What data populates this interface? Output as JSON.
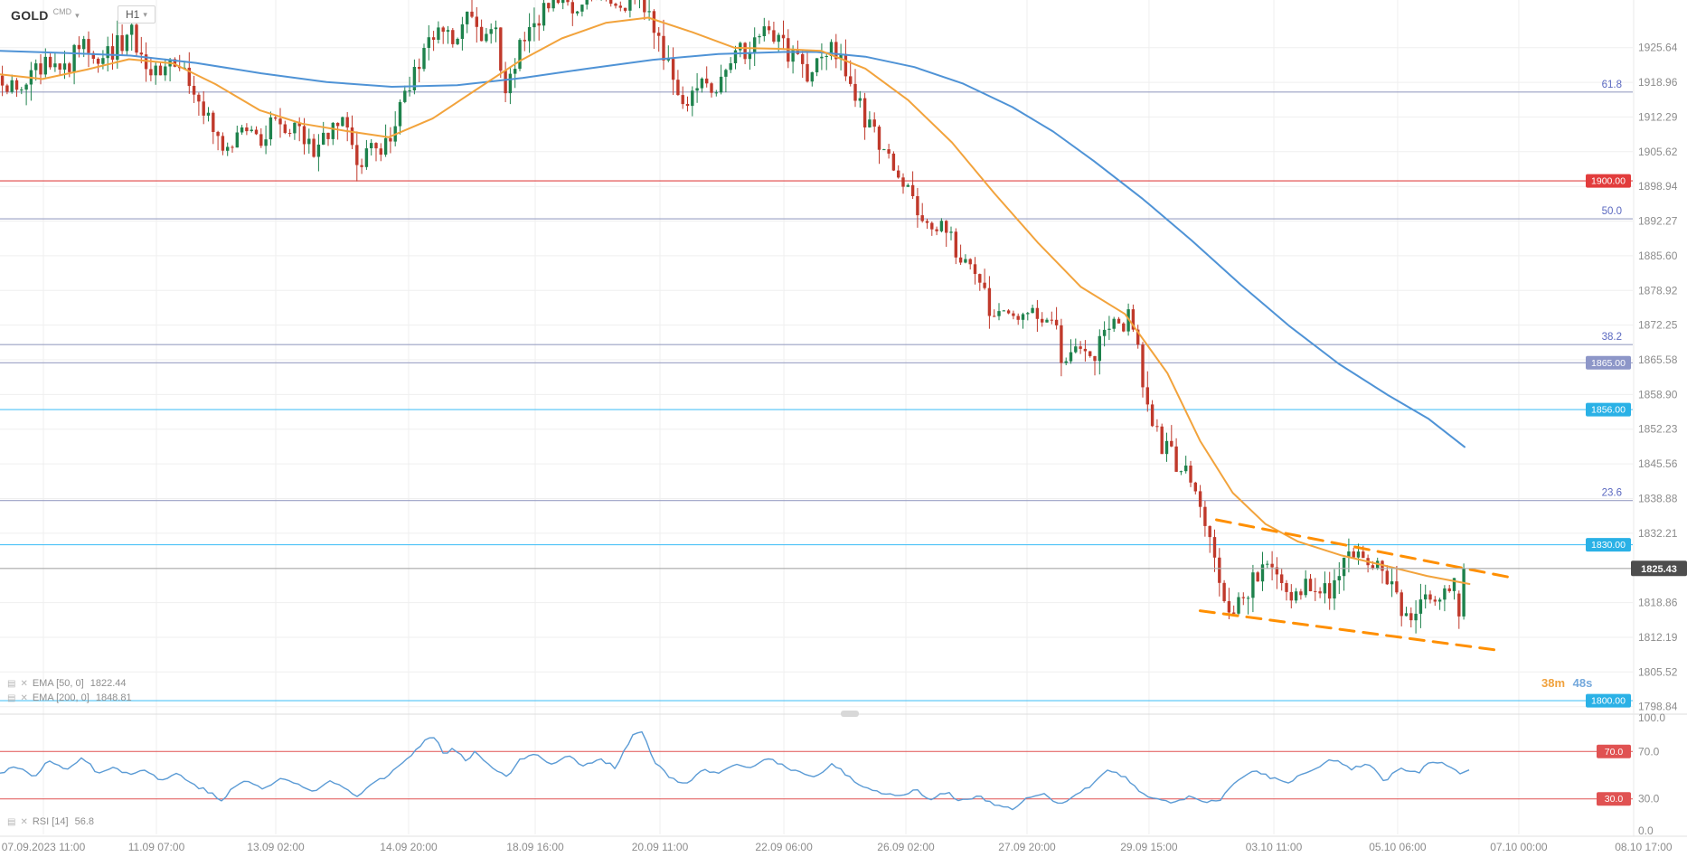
{
  "toolbar": {
    "symbol": "GOLD",
    "symbol_suffix": "CMD",
    "timeframe": "H1"
  },
  "indicators": {
    "ema50_label": "EMA [50, 0]",
    "ema50_value": "1822.44",
    "ema200_label": "EMA [200, 0]",
    "ema200_value": "1848.81",
    "rsi_label": "RSI [14]",
    "rsi_value": "56.8"
  },
  "timer": {
    "minutes": "38m",
    "seconds": "48s"
  },
  "colors": {
    "bull": "#1e824c",
    "bear": "#c0392b",
    "grid": "#efefef",
    "axis_text": "#8c8c8c",
    "current_line": "#a8a8a8",
    "current_badge": "#4d4d4d",
    "rsi_line": "#5b9bd5",
    "rsi_level": "#e05252"
  },
  "chart_data": {
    "type": "candlestick",
    "symbol": "GOLD",
    "timeframe": "H1",
    "current_price": 1825.43,
    "candle_spacing": 5.3,
    "candle_width": 3.4,
    "data_extent": 0.9007,
    "main_pane": {
      "price_top": 1934.8,
      "price_bottom": 1797.4
    },
    "price_axis_ticks": [
      1925.64,
      1918.96,
      1912.29,
      1905.62,
      1898.94,
      1892.27,
      1885.6,
      1878.92,
      1872.25,
      1865.58,
      1858.9,
      1852.23,
      1845.56,
      1838.88,
      1832.21,
      1818.86,
      1812.19,
      1805.52,
      1798.84
    ],
    "time_axis_ticks": [
      {
        "label": "07.09.2023 11:00",
        "x": 0.0266
      },
      {
        "label": "11.09 07:00",
        "x": 0.0958
      },
      {
        "label": "13.09 02:00",
        "x": 0.1689
      },
      {
        "label": "14.09 20:00",
        "x": 0.2503
      },
      {
        "label": "18.09 16:00",
        "x": 0.3278
      },
      {
        "label": "20.09 11:00",
        "x": 0.4042
      },
      {
        "label": "22.09 06:00",
        "x": 0.4801
      },
      {
        "label": "26.09 02:00",
        "x": 0.5548
      },
      {
        "label": "27.09 20:00",
        "x": 0.629
      },
      {
        "label": "29.09 15:00",
        "x": 0.7037
      },
      {
        "label": "03.10 11:00",
        "x": 0.7802
      },
      {
        "label": "05.10 06:00",
        "x": 0.856
      },
      {
        "label": "07.10 00:00",
        "x": 0.9302
      },
      {
        "label": "08.10 17:00",
        "x": 1.0066
      }
    ],
    "levels": [
      {
        "price": 1917.1,
        "label": "61.8",
        "style": "fib",
        "line_color": "#9aa0c4",
        "text_color": "#5a68c0"
      },
      {
        "price": 1900.0,
        "label": "1900.00",
        "style": "price",
        "line_color": "#e04646",
        "badge_color": "#e23c3c"
      },
      {
        "price": 1892.7,
        "label": "50.0",
        "style": "fib",
        "line_color": "#9aa0c4",
        "text_color": "#5a68c0"
      },
      {
        "price": 1868.5,
        "label": "38.2",
        "style": "fib",
        "line_color": "#9aa0c4",
        "text_color": "#5a68c0"
      },
      {
        "price": 1865.0,
        "label": "1865.00",
        "style": "price",
        "line_color": "#9aa0c4",
        "badge_color": "#8d96c8"
      },
      {
        "price": 1856.0,
        "label": "1856.00",
        "style": "price",
        "line_color": "#4fc3f7",
        "badge_color": "#2ab1e6"
      },
      {
        "price": 1838.5,
        "label": "23.6",
        "style": "fib",
        "line_color": "#9aa0c4",
        "text_color": "#5a68c0"
      },
      {
        "price": 1830.0,
        "label": "1830.00",
        "style": "price",
        "line_color": "#4fc3f7",
        "badge_color": "#2ab1e6"
      },
      {
        "price": 1800.0,
        "label": "1800.00",
        "style": "price",
        "line_color": "#4fc3f7",
        "badge_color": "#2ab1e6"
      }
    ],
    "trend_channel": {
      "color": "#ff8f00",
      "upper": [
        [
          0.745,
          1834.8
        ],
        [
          0.927,
          1823.6
        ]
      ],
      "lower": [
        [
          0.735,
          1817.3
        ],
        [
          0.92,
          1809.6
        ]
      ]
    },
    "ema50": {
      "period": 50,
      "value": 1822.44,
      "color": "#f2a33c",
      "path": [
        [
          0,
          1920.5
        ],
        [
          0.026,
          1919.6
        ],
        [
          0.053,
          1921.4
        ],
        [
          0.079,
          1923.4
        ],
        [
          0.106,
          1922.6
        ],
        [
          0.132,
          1918.6
        ],
        [
          0.159,
          1913.6
        ],
        [
          0.185,
          1911.0
        ],
        [
          0.212,
          1909.6
        ],
        [
          0.238,
          1908.4
        ],
        [
          0.265,
          1912.0
        ],
        [
          0.291,
          1917.4
        ],
        [
          0.318,
          1923.0
        ],
        [
          0.344,
          1927.4
        ],
        [
          0.371,
          1930.4
        ],
        [
          0.397,
          1931.4
        ],
        [
          0.424,
          1928.6
        ],
        [
          0.45,
          1925.6
        ],
        [
          0.477,
          1925.4
        ],
        [
          0.503,
          1925.0
        ],
        [
          0.53,
          1921.6
        ],
        [
          0.556,
          1915.6
        ],
        [
          0.583,
          1907.4
        ],
        [
          0.609,
          1897.6
        ],
        [
          0.636,
          1888.0
        ],
        [
          0.662,
          1879.6
        ],
        [
          0.689,
          1874.4
        ],
        [
          0.715,
          1863.0
        ],
        [
          0.735,
          1850.0
        ],
        [
          0.755,
          1840.0
        ],
        [
          0.775,
          1834.0
        ],
        [
          0.795,
          1830.6
        ],
        [
          0.821,
          1828.0
        ],
        [
          0.848,
          1826.0
        ],
        [
          0.874,
          1824.0
        ],
        [
          0.9,
          1822.44
        ]
      ]
    },
    "ema200": {
      "period": 200,
      "value": 1848.81,
      "color": "#4f93d6",
      "path": [
        [
          0,
          1925.0
        ],
        [
          0.04,
          1924.6
        ],
        [
          0.08,
          1924.1
        ],
        [
          0.12,
          1922.7
        ],
        [
          0.16,
          1920.7
        ],
        [
          0.2,
          1919.0
        ],
        [
          0.24,
          1918.1
        ],
        [
          0.28,
          1918.4
        ],
        [
          0.32,
          1919.8
        ],
        [
          0.36,
          1921.6
        ],
        [
          0.4,
          1923.3
        ],
        [
          0.44,
          1924.4
        ],
        [
          0.48,
          1924.8
        ],
        [
          0.5,
          1924.8
        ],
        [
          0.53,
          1923.9
        ],
        [
          0.56,
          1921.9
        ],
        [
          0.59,
          1918.7
        ],
        [
          0.62,
          1914.2
        ],
        [
          0.645,
          1909.5
        ],
        [
          0.67,
          1903.8
        ],
        [
          0.7,
          1896.5
        ],
        [
          0.73,
          1888.5
        ],
        [
          0.76,
          1880.0
        ],
        [
          0.79,
          1872.0
        ],
        [
          0.82,
          1864.8
        ],
        [
          0.85,
          1858.8
        ],
        [
          0.875,
          1854.2
        ],
        [
          0.897,
          1848.81
        ]
      ]
    },
    "price_path": [
      [
        0.0,
        1920
      ],
      [
        0.012,
        1917
      ],
      [
        0.028,
        1923
      ],
      [
        0.04,
        1921
      ],
      [
        0.05,
        1928
      ],
      [
        0.06,
        1922
      ],
      [
        0.07,
        1925
      ],
      [
        0.079,
        1929
      ],
      [
        0.089,
        1922
      ],
      [
        0.099,
        1920
      ],
      [
        0.109,
        1923
      ],
      [
        0.119,
        1917
      ],
      [
        0.129,
        1910
      ],
      [
        0.139,
        1906
      ],
      [
        0.149,
        1910
      ],
      [
        0.159,
        1908
      ],
      [
        0.166,
        1912
      ],
      [
        0.175,
        1909
      ],
      [
        0.182,
        1912
      ],
      [
        0.192,
        1905
      ],
      [
        0.202,
        1909
      ],
      [
        0.212,
        1912
      ],
      [
        0.219,
        1902
      ],
      [
        0.226,
        1907
      ],
      [
        0.235,
        1905
      ],
      [
        0.245,
        1913
      ],
      [
        0.252,
        1920
      ],
      [
        0.262,
        1925
      ],
      [
        0.268,
        1930
      ],
      [
        0.278,
        1926
      ],
      [
        0.288,
        1932
      ],
      [
        0.295,
        1927
      ],
      [
        0.302,
        1930
      ],
      [
        0.31,
        1918
      ],
      [
        0.318,
        1925
      ],
      [
        0.325,
        1930
      ],
      [
        0.334,
        1933
      ],
      [
        0.344,
        1936
      ],
      [
        0.354,
        1933
      ],
      [
        0.361,
        1936
      ],
      [
        0.371,
        1934
      ],
      [
        0.381,
        1933
      ],
      [
        0.391,
        1936
      ],
      [
        0.397,
        1932
      ],
      [
        0.404,
        1928
      ],
      [
        0.414,
        1917
      ],
      [
        0.421,
        1914
      ],
      [
        0.43,
        1920
      ],
      [
        0.437,
        1917
      ],
      [
        0.444,
        1923
      ],
      [
        0.45,
        1926
      ],
      [
        0.457,
        1924
      ],
      [
        0.464,
        1928
      ],
      [
        0.47,
        1930
      ],
      [
        0.477,
        1928
      ],
      [
        0.483,
        1925
      ],
      [
        0.49,
        1923
      ],
      [
        0.497,
        1920
      ],
      [
        0.503,
        1923
      ],
      [
        0.51,
        1927
      ],
      [
        0.517,
        1921
      ],
      [
        0.523,
        1916
      ],
      [
        0.53,
        1912
      ],
      [
        0.536,
        1909
      ],
      [
        0.543,
        1905
      ],
      [
        0.55,
        1902
      ],
      [
        0.556,
        1898
      ],
      [
        0.563,
        1895
      ],
      [
        0.57,
        1890
      ],
      [
        0.576,
        1892
      ],
      [
        0.583,
        1888
      ],
      [
        0.589,
        1884
      ],
      [
        0.596,
        1885
      ],
      [
        0.603,
        1880
      ],
      [
        0.607,
        1872
      ],
      [
        0.613,
        1875
      ],
      [
        0.623,
        1874
      ],
      [
        0.632,
        1876
      ],
      [
        0.639,
        1873
      ],
      [
        0.645,
        1875
      ],
      [
        0.65,
        1863
      ],
      [
        0.656,
        1866
      ],
      [
        0.662,
        1868
      ],
      [
        0.669,
        1866
      ],
      [
        0.675,
        1870
      ],
      [
        0.682,
        1874
      ],
      [
        0.688,
        1872
      ],
      [
        0.692,
        1877
      ],
      [
        0.696,
        1870
      ],
      [
        0.7,
        1862
      ],
      [
        0.703,
        1856
      ],
      [
        0.709,
        1851
      ],
      [
        0.715,
        1848
      ],
      [
        0.721,
        1845
      ],
      [
        0.725,
        1843
      ],
      [
        0.728,
        1846
      ],
      [
        0.732,
        1840
      ],
      [
        0.735,
        1836
      ],
      [
        0.739,
        1832
      ],
      [
        0.742,
        1829
      ],
      [
        0.745,
        1826
      ],
      [
        0.748,
        1823
      ],
      [
        0.752,
        1819
      ],
      [
        0.755,
        1816
      ],
      [
        0.762,
        1820
      ],
      [
        0.768,
        1823
      ],
      [
        0.775,
        1827
      ],
      [
        0.781,
        1824
      ],
      [
        0.788,
        1821
      ],
      [
        0.794,
        1820
      ],
      [
        0.801,
        1823
      ],
      [
        0.808,
        1820
      ],
      [
        0.815,
        1822
      ],
      [
        0.821,
        1825
      ],
      [
        0.828,
        1828
      ],
      [
        0.834,
        1827
      ],
      [
        0.841,
        1826
      ],
      [
        0.848,
        1824
      ],
      [
        0.854,
        1820
      ],
      [
        0.861,
        1816
      ],
      [
        0.868,
        1818
      ],
      [
        0.874,
        1820
      ],
      [
        0.881,
        1819
      ],
      [
        0.887,
        1821
      ],
      [
        0.891,
        1822
      ],
      [
        0.894,
        1817
      ],
      [
        0.898,
        1819
      ],
      [
        0.9007,
        1825.43
      ]
    ],
    "final_candles": [
      {
        "open": 1820.6,
        "close": 1816.2,
        "high": 1821.2,
        "low": 1813.8
      },
      {
        "open": 1816.2,
        "close": 1825.43,
        "high": 1826.4,
        "low": 1815.6
      }
    ],
    "rsi": {
      "period": 14,
      "value": 56.8,
      "range": [
        0,
        100
      ],
      "levels": [
        {
          "value": 70,
          "label": "70.0"
        },
        {
          "value": 30,
          "label": "30.0"
        }
      ],
      "axis_ticks": [
        {
          "value": 100,
          "label": "100.0"
        },
        {
          "value": 70,
          "label": "70.0"
        },
        {
          "value": 30,
          "label": "30.0"
        },
        {
          "value": 0,
          "label": "0.0"
        }
      ],
      "path": [
        [
          0,
          52
        ],
        [
          0.01,
          58
        ],
        [
          0.02,
          48
        ],
        [
          0.03,
          62
        ],
        [
          0.04,
          55
        ],
        [
          0.05,
          65
        ],
        [
          0.06,
          52
        ],
        [
          0.07,
          58
        ],
        [
          0.079,
          50
        ],
        [
          0.089,
          55
        ],
        [
          0.099,
          45
        ],
        [
          0.109,
          52
        ],
        [
          0.119,
          42
        ],
        [
          0.129,
          35
        ],
        [
          0.136,
          27
        ],
        [
          0.142,
          40
        ],
        [
          0.152,
          45
        ],
        [
          0.162,
          38
        ],
        [
          0.172,
          48
        ],
        [
          0.182,
          42
        ],
        [
          0.192,
          36
        ],
        [
          0.202,
          45
        ],
        [
          0.212,
          40
        ],
        [
          0.219,
          32
        ],
        [
          0.228,
          44
        ],
        [
          0.238,
          50
        ],
        [
          0.248,
          62
        ],
        [
          0.258,
          75
        ],
        [
          0.265,
          85
        ],
        [
          0.272,
          68
        ],
        [
          0.278,
          74
        ],
        [
          0.285,
          62
        ],
        [
          0.291,
          70
        ],
        [
          0.301,
          58
        ],
        [
          0.31,
          48
        ],
        [
          0.318,
          62
        ],
        [
          0.328,
          68
        ],
        [
          0.338,
          60
        ],
        [
          0.348,
          66
        ],
        [
          0.358,
          58
        ],
        [
          0.368,
          64
        ],
        [
          0.377,
          56
        ],
        [
          0.387,
          83
        ],
        [
          0.394,
          86
        ],
        [
          0.401,
          60
        ],
        [
          0.411,
          48
        ],
        [
          0.421,
          42
        ],
        [
          0.43,
          55
        ],
        [
          0.44,
          50
        ],
        [
          0.45,
          60
        ],
        [
          0.46,
          55
        ],
        [
          0.47,
          65
        ],
        [
          0.48,
          58
        ],
        [
          0.49,
          52
        ],
        [
          0.5,
          48
        ],
        [
          0.51,
          60
        ],
        [
          0.52,
          48
        ],
        [
          0.53,
          40
        ],
        [
          0.54,
          35
        ],
        [
          0.55,
          32
        ],
        [
          0.56,
          38
        ],
        [
          0.57,
          30
        ],
        [
          0.579,
          36
        ],
        [
          0.589,
          28
        ],
        [
          0.599,
          32
        ],
        [
          0.609,
          25
        ],
        [
          0.619,
          21
        ],
        [
          0.629,
          30
        ],
        [
          0.639,
          34
        ],
        [
          0.649,
          24
        ],
        [
          0.659,
          35
        ],
        [
          0.669,
          42
        ],
        [
          0.679,
          55
        ],
        [
          0.689,
          48
        ],
        [
          0.699,
          35
        ],
        [
          0.709,
          30
        ],
        [
          0.719,
          27
        ],
        [
          0.728,
          32
        ],
        [
          0.738,
          26
        ],
        [
          0.748,
          30
        ],
        [
          0.758,
          45
        ],
        [
          0.768,
          55
        ],
        [
          0.778,
          48
        ],
        [
          0.788,
          44
        ],
        [
          0.798,
          50
        ],
        [
          0.808,
          58
        ],
        [
          0.818,
          64
        ],
        [
          0.828,
          55
        ],
        [
          0.838,
          60
        ],
        [
          0.848,
          45
        ],
        [
          0.858,
          56
        ],
        [
          0.868,
          52
        ],
        [
          0.878,
          62
        ],
        [
          0.888,
          58
        ],
        [
          0.895,
          50
        ],
        [
          0.9007,
          56.8
        ]
      ]
    }
  }
}
